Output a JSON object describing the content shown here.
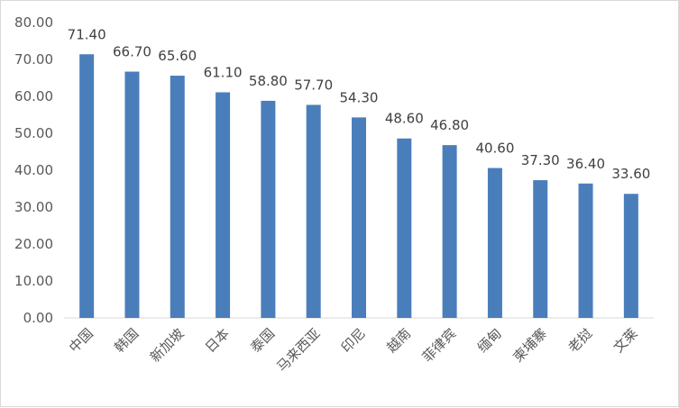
{
  "chart_data": {
    "type": "bar",
    "categories": [
      "中国",
      "韩国",
      "新加坡",
      "日本",
      "泰国",
      "马来西亚",
      "印尼",
      "越南",
      "菲律宾",
      "缅甸",
      "柬埔寨",
      "老挝",
      "文莱"
    ],
    "values": [
      71.4,
      66.7,
      65.6,
      61.1,
      58.8,
      57.7,
      54.3,
      48.6,
      46.8,
      40.6,
      37.3,
      36.4,
      33.6
    ],
    "data_labels": [
      "71.40",
      "66.70",
      "65.60",
      "61.10",
      "58.80",
      "57.70",
      "54.30",
      "48.60",
      "46.80",
      "40.60",
      "37.30",
      "36.40",
      "33.60"
    ],
    "y_ticks": [
      "0.00",
      "10.00",
      "20.00",
      "30.00",
      "40.00",
      "50.00",
      "60.00",
      "70.00",
      "80.00"
    ],
    "ylim": [
      0,
      80
    ],
    "grid": false,
    "legend": "none",
    "bar_color": "#4a7ebb",
    "axis_color": "#d9d9d9"
  }
}
